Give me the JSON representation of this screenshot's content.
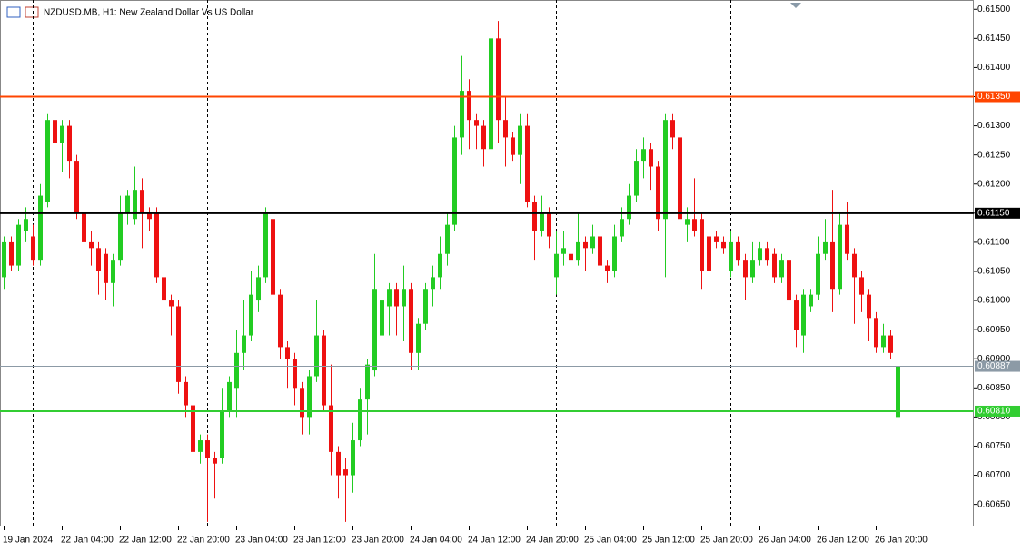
{
  "chart_data": {
    "type": "candlestick",
    "title": "NZDUSD.MB, H1:  New Zealand Dollar Vs US Dollar",
    "categories": [
      "19 Jan 2024",
      null,
      null,
      null,
      null,
      null,
      null,
      null,
      "22 Jan 04:00",
      null,
      null,
      null,
      null,
      null,
      null,
      null,
      "22 Jan 12:00",
      null,
      null,
      null,
      null,
      null,
      null,
      null,
      "22 Jan 20:00",
      null,
      null,
      null,
      null,
      null,
      null,
      null,
      "23 Jan 04:00",
      null,
      null,
      null,
      null,
      null,
      null,
      null,
      "23 Jan 12:00",
      null,
      null,
      null,
      null,
      null,
      null,
      null,
      "23 Jan 20:00",
      null,
      null,
      null,
      null,
      null,
      null,
      null,
      "24 Jan 04:00",
      null,
      null,
      null,
      null,
      null,
      null,
      null,
      "24 Jan 12:00",
      null,
      null,
      null,
      null,
      null,
      null,
      null,
      "24 Jan 20:00",
      null,
      null,
      null,
      null,
      null,
      null,
      null,
      "25 Jan 04:00",
      null,
      null,
      null,
      null,
      null,
      null,
      null,
      "25 Jan 12:00",
      null,
      null,
      null,
      null,
      null,
      null,
      null,
      "25 Jan 20:00",
      null,
      null,
      null,
      null,
      null,
      null,
      null,
      "26 Jan 04:00",
      null,
      null,
      null,
      null,
      null,
      null,
      null,
      "26 Jan 12:00",
      null,
      null,
      null,
      null,
      null,
      null,
      null,
      "26 Jan 20:00",
      null,
      null,
      null
    ],
    "open": [
      0.6104,
      0.611,
      0.6106,
      0.6112,
      0.6111,
      0.6107,
      0.6117,
      0.6131,
      0.6127,
      0.613,
      0.6124,
      0.6115,
      0.611,
      0.6109,
      0.6108,
      0.6103,
      0.6107,
      0.6115,
      0.6114,
      0.6119,
      0.6115,
      0.6115,
      0.6104,
      0.61,
      0.6099,
      0.6086,
      0.6082,
      0.6074,
      0.6076,
      0.6073,
      0.6073,
      0.6081,
      0.6085,
      0.6091,
      0.6094,
      0.61,
      0.6104,
      0.6114,
      0.6101,
      0.6092,
      0.609,
      0.6085,
      0.608,
      0.6087,
      0.6094,
      0.6082,
      0.6074,
      0.6071,
      0.607,
      0.6076,
      0.6083,
      0.6088,
      0.6094,
      0.6099,
      0.6102,
      0.6099,
      0.6102,
      0.6091,
      0.6096,
      0.6102,
      0.6104,
      0.6108,
      0.6113,
      0.6128,
      0.6136,
      0.6131,
      0.613,
      0.6126,
      0.6145,
      0.6131,
      0.6128,
      0.6125,
      0.613,
      0.6117,
      0.6112,
      0.6115,
      0.6104,
      0.6108,
      0.6108,
      0.6107,
      0.611,
      0.6109,
      0.6111,
      0.6106,
      0.6105,
      0.6111,
      0.6114,
      0.6118,
      0.6124,
      0.6126,
      0.6123,
      0.6114,
      0.6131,
      0.6128,
      0.6113,
      0.6114,
      0.6114,
      0.6111,
      0.6111,
      0.611,
      0.6105,
      0.611,
      0.6107,
      0.6104,
      0.6107,
      0.6109,
      0.6108,
      0.6104,
      0.6107,
      0.61,
      0.6094,
      0.6099,
      0.6101,
      0.6108,
      0.611,
      0.6102,
      0.6113,
      0.6108,
      0.6104,
      0.6101,
      0.6097,
      0.6092,
      0.6094,
      0.608
    ],
    "high": [
      0.6111,
      0.6111,
      0.6114,
      0.6116,
      0.6113,
      0.612,
      0.6132,
      0.6139,
      0.6131,
      0.6131,
      0.6125,
      0.6116,
      0.6112,
      0.611,
      0.6109,
      0.6108,
      0.6118,
      0.6119,
      0.6123,
      0.6121,
      0.6116,
      0.6116,
      0.6105,
      0.6101,
      0.61,
      0.6087,
      0.6085,
      0.6077,
      0.6077,
      0.6074,
      0.6085,
      0.6087,
      0.6095,
      0.61,
      0.6105,
      0.6106,
      0.6116,
      0.6116,
      0.6102,
      0.6093,
      0.6091,
      0.6086,
      0.6088,
      0.61,
      0.6095,
      0.6089,
      0.6075,
      0.6073,
      0.6079,
      0.6085,
      0.609,
      0.6108,
      0.6104,
      0.6103,
      0.6103,
      0.6106,
      0.6103,
      0.6097,
      0.6103,
      0.6106,
      0.6111,
      0.6115,
      0.613,
      0.6142,
      0.6138,
      0.6132,
      0.6131,
      0.6146,
      0.6148,
      0.6135,
      0.6129,
      0.6132,
      0.6132,
      0.6118,
      0.6118,
      0.6116,
      0.6112,
      0.6112,
      0.6109,
      0.6115,
      0.6111,
      0.6113,
      0.6112,
      0.6107,
      0.6113,
      0.6116,
      0.612,
      0.6126,
      0.6128,
      0.6127,
      0.6124,
      0.6132,
      0.6132,
      0.6129,
      0.6116,
      0.6121,
      0.6115,
      0.6112,
      0.6112,
      0.6111,
      0.6112,
      0.6111,
      0.6108,
      0.611,
      0.611,
      0.611,
      0.6109,
      0.6108,
      0.6108,
      0.6101,
      0.6102,
      0.6102,
      0.6111,
      0.6114,
      0.6119,
      0.6115,
      0.6117,
      0.6109,
      0.6105,
      0.6102,
      0.6098,
      0.6096,
      0.6095,
      0.6089
    ],
    "low": [
      0.6102,
      0.6105,
      0.6105,
      0.611,
      0.6106,
      0.6106,
      0.6116,
      0.6124,
      0.6122,
      0.6121,
      0.6114,
      0.6109,
      0.6106,
      0.6101,
      0.61,
      0.6099,
      0.6106,
      0.6113,
      0.6113,
      0.6109,
      0.6112,
      0.6103,
      0.6096,
      0.6094,
      0.6084,
      0.608,
      0.6073,
      0.6072,
      0.6062,
      0.6066,
      0.6072,
      0.608,
      0.608,
      0.6088,
      0.6093,
      0.6098,
      0.6103,
      0.61,
      0.609,
      0.6085,
      0.6082,
      0.6077,
      0.6077,
      0.6086,
      0.6081,
      0.607,
      0.6066,
      0.6062,
      0.6067,
      0.6075,
      0.6077,
      0.6087,
      0.6085,
      0.6094,
      0.6094,
      0.6093,
      0.6088,
      0.6088,
      0.6095,
      0.6099,
      0.6102,
      0.6106,
      0.6112,
      0.6125,
      0.6126,
      0.6126,
      0.6123,
      0.6125,
      0.6127,
      0.6123,
      0.6124,
      0.612,
      0.6116,
      0.6107,
      0.6111,
      0.6109,
      0.6101,
      0.6106,
      0.61,
      0.6106,
      0.6105,
      0.6108,
      0.6105,
      0.6103,
      0.6104,
      0.611,
      0.6113,
      0.6117,
      0.6121,
      0.6119,
      0.6112,
      0.6104,
      0.6126,
      0.6107,
      0.611,
      0.6111,
      0.6102,
      0.6098,
      0.6109,
      0.6108,
      0.6104,
      0.6106,
      0.61,
      0.6103,
      0.6106,
      0.6106,
      0.6103,
      0.6103,
      0.6099,
      0.6092,
      0.6091,
      0.6098,
      0.61,
      0.6107,
      0.6098,
      0.6101,
      0.6107,
      0.6096,
      0.6098,
      0.6093,
      0.6091,
      0.6091,
      0.609,
      0.6079
    ],
    "close": [
      0.611,
      0.6106,
      0.6113,
      0.6114,
      0.6107,
      0.6118,
      0.6131,
      0.6127,
      0.613,
      0.6124,
      0.6115,
      0.611,
      0.6109,
      0.6105,
      0.6103,
      0.6107,
      0.6115,
      0.6118,
      0.6119,
      0.6115,
      0.6114,
      0.6104,
      0.61,
      0.6099,
      0.6086,
      0.6082,
      0.6074,
      0.6076,
      0.6073,
      0.6072,
      0.6081,
      0.6086,
      0.6091,
      0.6094,
      0.6101,
      0.6104,
      0.6115,
      0.6101,
      0.6092,
      0.609,
      0.6085,
      0.608,
      0.6087,
      0.6094,
      0.6082,
      0.6074,
      0.607,
      0.607,
      0.6076,
      0.6083,
      0.6089,
      0.6102,
      0.61,
      0.6102,
      0.6099,
      0.6102,
      0.6091,
      0.6096,
      0.6102,
      0.6104,
      0.6108,
      0.6113,
      0.6128,
      0.6136,
      0.6131,
      0.613,
      0.6126,
      0.6145,
      0.6131,
      0.6128,
      0.6125,
      0.613,
      0.6117,
      0.6112,
      0.6115,
      0.6111,
      0.6108,
      0.6109,
      0.6107,
      0.611,
      0.6109,
      0.6111,
      0.6106,
      0.6105,
      0.6111,
      0.6114,
      0.6118,
      0.6124,
      0.6126,
      0.6123,
      0.6114,
      0.6131,
      0.6128,
      0.6114,
      0.6114,
      0.6112,
      0.6105,
      0.6105,
      0.611,
      0.6109,
      0.611,
      0.6107,
      0.6104,
      0.6107,
      0.6109,
      0.6107,
      0.6104,
      0.6107,
      0.61,
      0.6095,
      0.6101,
      0.6101,
      0.6108,
      0.611,
      0.6102,
      0.6113,
      0.6108,
      0.6104,
      0.6101,
      0.6097,
      0.6092,
      0.6094,
      0.6091,
      0.60887
    ],
    "up_color": "#22cc22",
    "down_color": "#ee1111",
    "ylim": [
      0.60612,
      0.61516
    ],
    "yticks": [
      {
        "value": 0.615,
        "label": "0.61500"
      },
      {
        "value": 0.6145,
        "label": "0.61450"
      },
      {
        "value": 0.614,
        "label": "0.61400"
      },
      {
        "value": 0.6135,
        "label": "0.61350"
      },
      {
        "value": 0.613,
        "label": "0.61300"
      },
      {
        "value": 0.6125,
        "label": "0.61250"
      },
      {
        "value": 0.612,
        "label": "0.61200"
      },
      {
        "value": 0.6115,
        "label": "0.61150"
      },
      {
        "value": 0.611,
        "label": "0.61100"
      },
      {
        "value": 0.6105,
        "label": "0.61050"
      },
      {
        "value": 0.61,
        "label": "0.61000"
      },
      {
        "value": 0.6095,
        "label": "0.60950"
      },
      {
        "value": 0.609,
        "label": "0.60900"
      },
      {
        "value": 0.6085,
        "label": "0.60850"
      },
      {
        "value": 0.608,
        "label": "0.60800"
      },
      {
        "value": 0.6075,
        "label": "0.60750"
      },
      {
        "value": 0.607,
        "label": "0.60700"
      },
      {
        "value": 0.6065,
        "label": "0.60650"
      }
    ],
    "hlines": [
      {
        "value": 0.6135,
        "label": "0.61350",
        "color": "#ff4500"
      },
      {
        "value": 0.6115,
        "label": "0.61150",
        "color": "#000000"
      },
      {
        "value": 0.6081,
        "label": "0.60810",
        "color": "#32cd32"
      }
    ],
    "bid": {
      "value": 0.60887,
      "label": "0.60887",
      "color": "#8c9aa6"
    }
  }
}
